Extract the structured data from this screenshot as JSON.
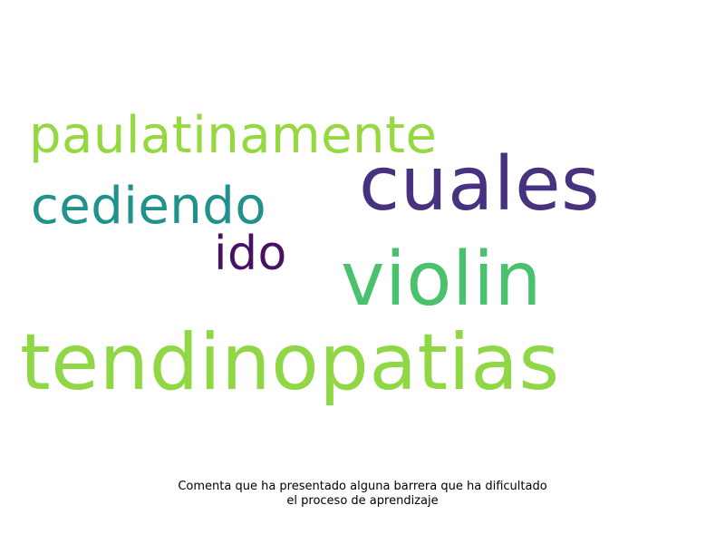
{
  "words": [
    {
      "id": "paulatinamente",
      "text": "paulatinamente",
      "color": "#95d840"
    },
    {
      "id": "cuales",
      "text": "cuales",
      "color": "#46327e"
    },
    {
      "id": "cediendo",
      "text": "cediendo",
      "color": "#21918c"
    },
    {
      "id": "ido",
      "text": "ido",
      "color": "#471164"
    },
    {
      "id": "violin",
      "text": "violin",
      "color": "#4ac16d"
    },
    {
      "id": "tendinopatias",
      "text": "tendinopatias",
      "color": "#8fd744"
    }
  ],
  "caption": {
    "line1": "Comenta que ha presentado alguna barrera que ha dificultado",
    "line2": "el proceso de aprendizaje"
  }
}
